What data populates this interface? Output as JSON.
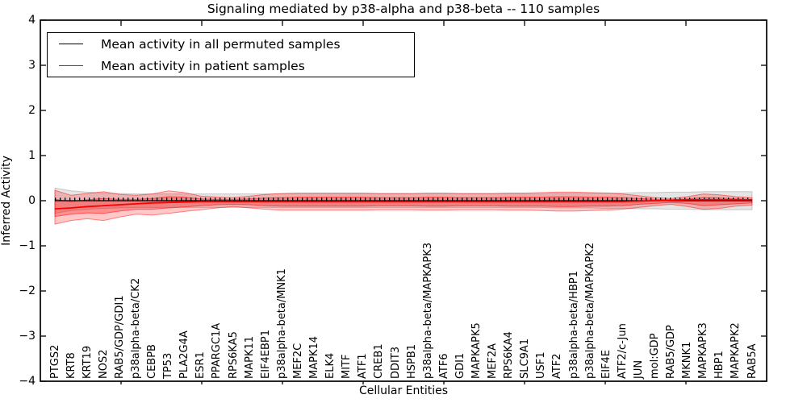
{
  "chart_data": {
    "type": "line",
    "title": "Signaling mediated by p38-alpha and p38-beta -- 110 samples",
    "xlabel": "Cellular Entities",
    "ylabel": "Inferred Activity",
    "ylim": [
      -4,
      4
    ],
    "ytick_values": [
      4,
      3,
      2,
      1,
      0,
      -1,
      -2,
      -3,
      -4
    ],
    "ytick_labels": [
      "4",
      "3",
      "2",
      "1",
      "0",
      "−1",
      "−2",
      "−3",
      "−4"
    ],
    "grid": false,
    "legend_position": "upper left",
    "legend": [
      {
        "label": "Mean activity in all permuted samples",
        "color": "#000000"
      },
      {
        "label": "Mean activity in patient samples",
        "color": "#ff0000"
      }
    ],
    "categories": [
      "PTGS2",
      "KRT8",
      "KRT19",
      "NOS2",
      "RAB5/GDP/GDI1",
      "p38alpha-beta/CK2",
      "CEBPB",
      "TP53",
      "PLA2G4A",
      "ESR1",
      "PPARGC1A",
      "RPS6KA5",
      "MAPK11",
      "EIF4EBP1",
      "p38alpha-beta/MNK1",
      "MEF2C",
      "MAPK14",
      "ELK4",
      "MITF",
      "ATF1",
      "CREB1",
      "DDIT3",
      "HSPB1",
      "p38alpha-beta/MAPKAPK3",
      "ATF6",
      "GDI1",
      "MAPKAPK5",
      "MEF2A",
      "RPS6KA4",
      "SLC9A1",
      "USF1",
      "ATF2",
      "p38alpha-beta/HBP1",
      "p38alpha-beta/MAPKAPK2",
      "EIF4E",
      "ATF2/c-Jun",
      "JUN",
      "mol:GDP",
      "RAB5/GDP",
      "MKNK1",
      "MAPKAPK3",
      "HBP1",
      "MAPKAPK2",
      "RAB5A"
    ],
    "series": [
      {
        "name": "Mean activity in all permuted samples",
        "color": "#000000",
        "style": "solid-with-tick-markers",
        "values": [
          0,
          0,
          0,
          0,
          0,
          0,
          0,
          0,
          0,
          0,
          0,
          0,
          0,
          0,
          0,
          0,
          0,
          0,
          0,
          0,
          0,
          0,
          0,
          0,
          0,
          0,
          0,
          0,
          0,
          0,
          0,
          0,
          0,
          0,
          0,
          0,
          0,
          0,
          0,
          0,
          0,
          0,
          0,
          0
        ]
      },
      {
        "name": "Mean activity in patient samples",
        "color": "#ff0000",
        "style": "solid",
        "values": [
          -0.18,
          -0.16,
          -0.13,
          -0.11,
          -0.09,
          -0.07,
          -0.05,
          -0.04,
          -0.03,
          -0.02,
          -0.02,
          -0.02,
          -0.02,
          -0.02,
          -0.02,
          -0.02,
          -0.02,
          -0.02,
          -0.02,
          -0.02,
          -0.02,
          -0.02,
          -0.02,
          -0.02,
          -0.02,
          -0.02,
          -0.02,
          -0.02,
          -0.02,
          -0.02,
          -0.02,
          -0.02,
          -0.02,
          -0.02,
          -0.02,
          -0.02,
          -0.01,
          0,
          0.01,
          0.02,
          0.02,
          0.02,
          0.02,
          0.02
        ]
      }
    ],
    "bands": [
      {
        "name": "permuted-samples-range",
        "fill": "rgba(0,0,0,0.10)",
        "edge": "rgba(0,0,0,0.18)",
        "upper": [
          0.28,
          0.22,
          0.19,
          0.17,
          0.16,
          0.15,
          0.15,
          0.15,
          0.15,
          0.15,
          0.15,
          0.15,
          0.15,
          0.15,
          0.15,
          0.15,
          0.15,
          0.15,
          0.15,
          0.15,
          0.15,
          0.15,
          0.15,
          0.15,
          0.15,
          0.15,
          0.15,
          0.15,
          0.15,
          0.15,
          0.15,
          0.16,
          0.16,
          0.16,
          0.17,
          0.17,
          0.18,
          0.18,
          0.19,
          0.19,
          0.2,
          0.2,
          0.2,
          0.2
        ],
        "lower": [
          -0.28,
          -0.22,
          -0.19,
          -0.17,
          -0.16,
          -0.15,
          -0.15,
          -0.15,
          -0.15,
          -0.15,
          -0.15,
          -0.15,
          -0.15,
          -0.15,
          -0.15,
          -0.15,
          -0.15,
          -0.15,
          -0.15,
          -0.15,
          -0.15,
          -0.15,
          -0.15,
          -0.15,
          -0.15,
          -0.15,
          -0.15,
          -0.15,
          -0.15,
          -0.15,
          -0.15,
          -0.16,
          -0.16,
          -0.16,
          -0.17,
          -0.17,
          -0.18,
          -0.18,
          -0.19,
          -0.19,
          -0.2,
          -0.2,
          -0.2,
          -0.2
        ]
      },
      {
        "name": "patient-samples-outer-range",
        "fill": "rgba(255,0,0,0.22)",
        "edge": "rgba(255,0,0,0.45)",
        "upper": [
          0.23,
          0.12,
          0.16,
          0.2,
          0.14,
          0.12,
          0.15,
          0.22,
          0.18,
          0.1,
          0.08,
          0.07,
          0.1,
          0.14,
          0.16,
          0.17,
          0.17,
          0.17,
          0.17,
          0.17,
          0.16,
          0.16,
          0.16,
          0.17,
          0.17,
          0.16,
          0.16,
          0.16,
          0.17,
          0.17,
          0.18,
          0.19,
          0.19,
          0.18,
          0.17,
          0.15,
          0.11,
          0.07,
          0.05,
          0.09,
          0.15,
          0.13,
          0.09,
          0.07
        ],
        "lower": [
          -0.52,
          -0.44,
          -0.4,
          -0.44,
          -0.36,
          -0.3,
          -0.32,
          -0.28,
          -0.24,
          -0.2,
          -0.16,
          -0.13,
          -0.16,
          -0.19,
          -0.21,
          -0.21,
          -0.21,
          -0.21,
          -0.21,
          -0.21,
          -0.2,
          -0.2,
          -0.2,
          -0.21,
          -0.21,
          -0.2,
          -0.2,
          -0.2,
          -0.21,
          -0.21,
          -0.22,
          -0.23,
          -0.23,
          -0.22,
          -0.21,
          -0.19,
          -0.15,
          -0.11,
          -0.08,
          -0.13,
          -0.19,
          -0.17,
          -0.12,
          -0.1
        ]
      },
      {
        "name": "patient-samples-inner-range",
        "fill": "rgba(255,0,0,0.28)",
        "edge": "rgba(255,0,0,0.50)",
        "upper": [
          0.03,
          -0.02,
          0.02,
          0.05,
          0.03,
          0.03,
          0.05,
          0.09,
          0.08,
          0.04,
          0.03,
          0.03,
          0.04,
          0.06,
          0.07,
          0.08,
          0.08,
          0.08,
          0.08,
          0.08,
          0.07,
          0.07,
          0.07,
          0.08,
          0.08,
          0.07,
          0.07,
          0.07,
          0.08,
          0.08,
          0.08,
          0.09,
          0.09,
          0.08,
          0.08,
          0.07,
          0.05,
          0.03,
          0.02,
          0.04,
          0.07,
          0.06,
          0.04,
          0.03
        ],
        "lower": [
          -0.35,
          -0.3,
          -0.27,
          -0.28,
          -0.23,
          -0.19,
          -0.19,
          -0.16,
          -0.14,
          -0.11,
          -0.09,
          -0.08,
          -0.09,
          -0.11,
          -0.12,
          -0.12,
          -0.12,
          -0.12,
          -0.12,
          -0.12,
          -0.11,
          -0.11,
          -0.11,
          -0.12,
          -0.12,
          -0.11,
          -0.11,
          -0.11,
          -0.12,
          -0.12,
          -0.12,
          -0.13,
          -0.13,
          -0.12,
          -0.12,
          -0.11,
          -0.08,
          -0.06,
          -0.04,
          -0.06,
          -0.11,
          -0.09,
          -0.07,
          -0.05
        ]
      }
    ]
  }
}
